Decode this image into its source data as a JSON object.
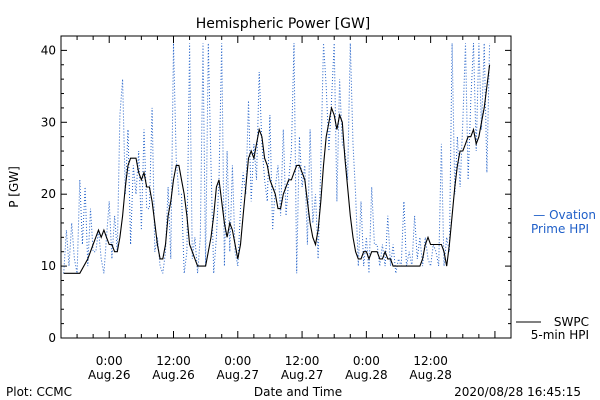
{
  "chart_data": {
    "type": "line",
    "title": "Hemispheric Power [GW]",
    "xlabel": "Date and Time",
    "ylabel": "P [GW]",
    "ylim": [
      0,
      42
    ],
    "yticks": [
      0,
      10,
      20,
      30,
      40
    ],
    "xlim": [
      -9,
      75
    ],
    "xticks": [
      {
        "t": 0,
        "time": "0:00",
        "date": "Aug.26"
      },
      {
        "t": 12,
        "time": "12:00",
        "date": "Aug.26"
      },
      {
        "t": 24,
        "time": "0:00",
        "date": "Aug.27"
      },
      {
        "t": 36,
        "time": "12:00",
        "date": "Aug.27"
      },
      {
        "t": 48,
        "time": "0:00",
        "date": "Aug.28"
      },
      {
        "t": 60,
        "time": "12:00",
        "date": "Aug.28"
      }
    ],
    "x_units": "hours since 2020-08-26 00:00 UT",
    "series": [
      {
        "name": "SWPC 5-min HPI",
        "color": "#000000",
        "style": "solid",
        "points": [
          [
            -8.5,
            9
          ],
          [
            -5.5,
            9
          ],
          [
            -4,
            11
          ],
          [
            -3,
            13
          ],
          [
            -2.5,
            14
          ],
          [
            -2,
            15
          ],
          [
            -1.5,
            14
          ],
          [
            -1,
            15
          ],
          [
            -0.5,
            14
          ],
          [
            0,
            13
          ],
          [
            0.5,
            13
          ],
          [
            1,
            12
          ],
          [
            1.5,
            12
          ],
          [
            2,
            14
          ],
          [
            2.5,
            17
          ],
          [
            3,
            21
          ],
          [
            3.5,
            24
          ],
          [
            4,
            25
          ],
          [
            5,
            25
          ],
          [
            5.5,
            23
          ],
          [
            6,
            22
          ],
          [
            6.5,
            23
          ],
          [
            7,
            21
          ],
          [
            7.5,
            21
          ],
          [
            8,
            19
          ],
          [
            8.5,
            16
          ],
          [
            9,
            13
          ],
          [
            9.5,
            11
          ],
          [
            10,
            11
          ],
          [
            10.5,
            13
          ],
          [
            11,
            17
          ],
          [
            11.5,
            19
          ],
          [
            12,
            22
          ],
          [
            12.5,
            24
          ],
          [
            13,
            24
          ],
          [
            13.5,
            22
          ],
          [
            14,
            20
          ],
          [
            14.5,
            17
          ],
          [
            15,
            13
          ],
          [
            15.5,
            12
          ],
          [
            16,
            11
          ],
          [
            16.5,
            10
          ],
          [
            17,
            10
          ],
          [
            18,
            10
          ],
          [
            18.5,
            12
          ],
          [
            19,
            14
          ],
          [
            19.5,
            17
          ],
          [
            20,
            21
          ],
          [
            20.5,
            22
          ],
          [
            21,
            19
          ],
          [
            21.5,
            16
          ],
          [
            22,
            14
          ],
          [
            22.5,
            16
          ],
          [
            23,
            15
          ],
          [
            23.5,
            13
          ],
          [
            24,
            11
          ],
          [
            24.5,
            13
          ],
          [
            25,
            17
          ],
          [
            25.5,
            21
          ],
          [
            26,
            25
          ],
          [
            26.5,
            26
          ],
          [
            27,
            25
          ],
          [
            27.5,
            27
          ],
          [
            28,
            29
          ],
          [
            28.5,
            28
          ],
          [
            29,
            25
          ],
          [
            29.5,
            24
          ],
          [
            30,
            22
          ],
          [
            30.5,
            21
          ],
          [
            31,
            20
          ],
          [
            31.5,
            18
          ],
          [
            32,
            18
          ],
          [
            32.5,
            20
          ],
          [
            33,
            21
          ],
          [
            33.5,
            22
          ],
          [
            34,
            22
          ],
          [
            34.5,
            23
          ],
          [
            35,
            24
          ],
          [
            35.5,
            24
          ],
          [
            36,
            23
          ],
          [
            36.5,
            22
          ],
          [
            37,
            19
          ],
          [
            37.5,
            16
          ],
          [
            38,
            14
          ],
          [
            38.5,
            13
          ],
          [
            39,
            15
          ],
          [
            39.5,
            19
          ],
          [
            40,
            24
          ],
          [
            40.5,
            28
          ],
          [
            41,
            30
          ],
          [
            41.5,
            32
          ],
          [
            42,
            31
          ],
          [
            42.5,
            29
          ],
          [
            43,
            31
          ],
          [
            43.5,
            30
          ],
          [
            44,
            25
          ],
          [
            44.5,
            21
          ],
          [
            45,
            17
          ],
          [
            45.5,
            14
          ],
          [
            46,
            12
          ],
          [
            46.5,
            11
          ],
          [
            47,
            11
          ],
          [
            47.5,
            12
          ],
          [
            48,
            12
          ],
          [
            48.5,
            11
          ],
          [
            49,
            12
          ],
          [
            50,
            12
          ],
          [
            50.5,
            11
          ],
          [
            51,
            11
          ],
          [
            51.5,
            12
          ],
          [
            52,
            11
          ],
          [
            52.5,
            11
          ],
          [
            53,
            10
          ],
          [
            54,
            10
          ],
          [
            56,
            10
          ],
          [
            58,
            10
          ],
          [
            58.5,
            11
          ],
          [
            59,
            13
          ],
          [
            59.5,
            14
          ],
          [
            60,
            13
          ],
          [
            60.5,
            13
          ],
          [
            61,
            13
          ],
          [
            61.5,
            13
          ],
          [
            62,
            13
          ],
          [
            62.5,
            12
          ],
          [
            63,
            10
          ],
          [
            63.5,
            13
          ],
          [
            64,
            17
          ],
          [
            64.5,
            21
          ],
          [
            65,
            24
          ],
          [
            65.5,
            26
          ],
          [
            66,
            26
          ],
          [
            66.5,
            27
          ],
          [
            67,
            28
          ],
          [
            67.5,
            28
          ],
          [
            68,
            29
          ],
          [
            68.5,
            27
          ],
          [
            69,
            28
          ],
          [
            69.5,
            30
          ],
          [
            70,
            32
          ],
          [
            70.5,
            35
          ],
          [
            71,
            38
          ]
        ]
      },
      {
        "name": "Ovation Prime HPI",
        "color": "#1f5fc8",
        "style": "dotted",
        "points": [
          [
            -8.5,
            9
          ],
          [
            -8,
            15
          ],
          [
            -7.5,
            10
          ],
          [
            -7,
            16
          ],
          [
            -6.5,
            11
          ],
          [
            -6,
            9
          ],
          [
            -5.5,
            22
          ],
          [
            -5,
            13
          ],
          [
            -4.5,
            21
          ],
          [
            -4,
            10
          ],
          [
            -3.5,
            18
          ],
          [
            -3,
            12
          ],
          [
            -2.5,
            12
          ],
          [
            -2,
            15
          ],
          [
            -1.5,
            11
          ],
          [
            -1,
            9
          ],
          [
            -0.5,
            14
          ],
          [
            0,
            19
          ],
          [
            0.5,
            11
          ],
          [
            1,
            17
          ],
          [
            1.5,
            12
          ],
          [
            2,
            31
          ],
          [
            2.5,
            36
          ],
          [
            3,
            20
          ],
          [
            3.5,
            29
          ],
          [
            4,
            13
          ],
          [
            4.5,
            24
          ],
          [
            5,
            20
          ],
          [
            5.5,
            26
          ],
          [
            6,
            15
          ],
          [
            6.5,
            29
          ],
          [
            7,
            18
          ],
          [
            7.5,
            18
          ],
          [
            8,
            32
          ],
          [
            8.5,
            12
          ],
          [
            9,
            14
          ],
          [
            9.5,
            10
          ],
          [
            10,
            9
          ],
          [
            10.5,
            12
          ],
          [
            11,
            21
          ],
          [
            11.5,
            11
          ],
          [
            12,
            41
          ],
          [
            12.5,
            25
          ],
          [
            13,
            20
          ],
          [
            13.5,
            20
          ],
          [
            14,
            9
          ],
          [
            14.5,
            12
          ],
          [
            15,
            41
          ],
          [
            15.5,
            11
          ],
          [
            16,
            14
          ],
          [
            16.5,
            9
          ],
          [
            17,
            14
          ],
          [
            17.5,
            41
          ],
          [
            18,
            10
          ],
          [
            18.5,
            41
          ],
          [
            19,
            24
          ],
          [
            19.5,
            9
          ],
          [
            20,
            14
          ],
          [
            20.5,
            22
          ],
          [
            21,
            41
          ],
          [
            21.5,
            10
          ],
          [
            22,
            26
          ],
          [
            22.5,
            12
          ],
          [
            23,
            24
          ],
          [
            23.5,
            12
          ],
          [
            24,
            10
          ],
          [
            24.5,
            18
          ],
          [
            25,
            23
          ],
          [
            25.5,
            20
          ],
          [
            26,
            33
          ],
          [
            26.5,
            19
          ],
          [
            27,
            27
          ],
          [
            27.5,
            22
          ],
          [
            28,
            37
          ],
          [
            28.5,
            27
          ],
          [
            29,
            22
          ],
          [
            29.5,
            19
          ],
          [
            30,
            31
          ],
          [
            30.5,
            15
          ],
          [
            31,
            21
          ],
          [
            31.5,
            24
          ],
          [
            32,
            17
          ],
          [
            32.5,
            29
          ],
          [
            33,
            17
          ],
          [
            33.5,
            22
          ],
          [
            34,
            26
          ],
          [
            34.5,
            41
          ],
          [
            35,
            9
          ],
          [
            35.5,
            28
          ],
          [
            36,
            21
          ],
          [
            36.5,
            24
          ],
          [
            37,
            13
          ],
          [
            37.5,
            29
          ],
          [
            38,
            16
          ],
          [
            38.5,
            20
          ],
          [
            39,
            11
          ],
          [
            39.5,
            24
          ],
          [
            40,
            41
          ],
          [
            40.5,
            35
          ],
          [
            41,
            26
          ],
          [
            41.5,
            33
          ],
          [
            42,
            41
          ],
          [
            42.5,
            19
          ],
          [
            43,
            36
          ],
          [
            43.5,
            27
          ],
          [
            44,
            26
          ],
          [
            44.5,
            22
          ],
          [
            45,
            41
          ],
          [
            45.5,
            27
          ],
          [
            46,
            20
          ],
          [
            46.5,
            10
          ],
          [
            47,
            19
          ],
          [
            47.5,
            10
          ],
          [
            48,
            14
          ],
          [
            48.5,
            9
          ],
          [
            49,
            21
          ],
          [
            49.5,
            13
          ],
          [
            50,
            13
          ],
          [
            50.5,
            10
          ],
          [
            51,
            13
          ],
          [
            51.5,
            10
          ],
          [
            52,
            17
          ],
          [
            52.5,
            10
          ],
          [
            53,
            13
          ],
          [
            53.5,
            9
          ],
          [
            54,
            11
          ],
          [
            54.5,
            10
          ],
          [
            55,
            19
          ],
          [
            55.5,
            10
          ],
          [
            56,
            12
          ],
          [
            56.5,
            10
          ],
          [
            57,
            17
          ],
          [
            57.5,
            11
          ],
          [
            58,
            14
          ],
          [
            58.5,
            10
          ],
          [
            59,
            14
          ],
          [
            59.5,
            11
          ],
          [
            60,
            10
          ],
          [
            60.5,
            13
          ],
          [
            61,
            12
          ],
          [
            61.5,
            10
          ],
          [
            62,
            27
          ],
          [
            62.5,
            10
          ],
          [
            63,
            14
          ],
          [
            63.5,
            12
          ],
          [
            64,
            41
          ],
          [
            64.5,
            20
          ],
          [
            65,
            28
          ],
          [
            65.5,
            21
          ],
          [
            66,
            30
          ],
          [
            66.5,
            41
          ],
          [
            67,
            22
          ],
          [
            67.5,
            33
          ],
          [
            68,
            41
          ],
          [
            68.5,
            26
          ],
          [
            69,
            41
          ],
          [
            69.5,
            29
          ],
          [
            70,
            41
          ],
          [
            70.5,
            23
          ],
          [
            71,
            41
          ]
        ]
      }
    ],
    "legend": {
      "ovation": {
        "line1": "— Ovation",
        "line2": "Prime HPI"
      },
      "swpc": {
        "line1": "SWPC",
        "line2": "5-min HPI"
      }
    }
  },
  "footer": {
    "left": "Plot: CCMC",
    "right": "2020/08/28 16:45:15"
  }
}
